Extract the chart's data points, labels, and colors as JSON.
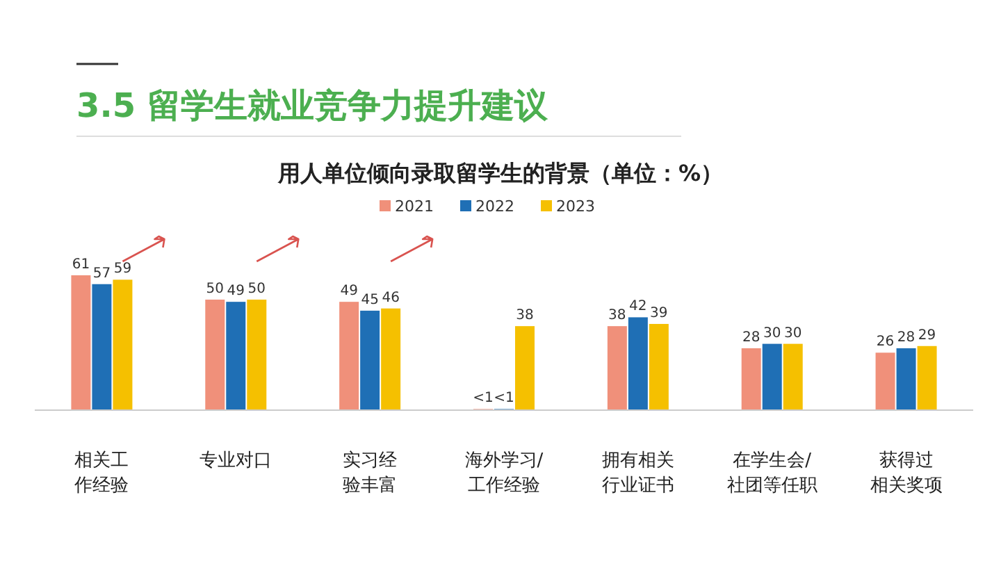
{
  "chart_data": {
    "type": "bar",
    "title": "3.5  留学生就业竞争力提升建议",
    "subtitle": "用人单位倾向录取留学生的背景（单位：%）",
    "categories": [
      "相关工作经验",
      "专业对口",
      "实习经验丰富",
      "海外学习/工作经验",
      "拥有相关行业证书",
      "在学生会/社团等任职",
      "获得过相关奖项"
    ],
    "series": [
      {
        "name": "2021",
        "color": "#f0907a",
        "values": [
          61,
          50,
          49,
          0.5,
          38,
          28,
          26
        ],
        "value_labels": [
          "61",
          "50",
          "49",
          "<1",
          "38",
          "28",
          "26"
        ]
      },
      {
        "name": "2022",
        "color": "#1f6fb5",
        "values": [
          57,
          49,
          45,
          0.5,
          42,
          30,
          28
        ],
        "value_labels": [
          "57",
          "49",
          "45",
          "<1",
          "42",
          "30",
          "28"
        ]
      },
      {
        "name": "2023",
        "color": "#f5c000",
        "values": [
          59,
          50,
          46,
          38,
          39,
          30,
          29
        ],
        "value_labels": [
          "59",
          "50",
          "46",
          "38",
          "39",
          "30",
          "29"
        ]
      }
    ],
    "legend": "top"
  }
}
